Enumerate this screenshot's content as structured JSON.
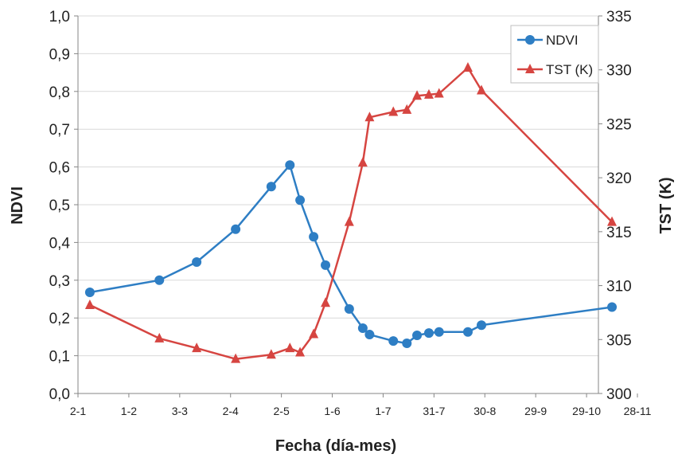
{
  "chart_data": {
    "type": "line",
    "xlabel": "Fecha (día-mes)",
    "ylabel": "NDVI",
    "y2label": "TST (K)",
    "x_domain": [
      0,
      307
    ],
    "x_ticks": [
      {
        "label": "2-1",
        "day": 0
      },
      {
        "label": "1-2",
        "day": 30
      },
      {
        "label": "3-3",
        "day": 60
      },
      {
        "label": "2-4",
        "day": 90
      },
      {
        "label": "2-5",
        "day": 120
      },
      {
        "label": "1-6",
        "day": 150
      },
      {
        "label": "1-7",
        "day": 180
      },
      {
        "label": "31-7",
        "day": 210
      },
      {
        "label": "30-8",
        "day": 240
      },
      {
        "label": "29-9",
        "day": 270
      },
      {
        "label": "29-10",
        "day": 300
      },
      {
        "label": "28-11",
        "day": 330
      }
    ],
    "y_left": {
      "min": 0,
      "max": 1,
      "step": 0.1
    },
    "y_left_ticks": [
      "0,0",
      "0,1",
      "0,2",
      "0,3",
      "0,4",
      "0,5",
      "0,6",
      "0,7",
      "0,8",
      "0,9",
      "1,0"
    ],
    "y_right": {
      "min": 300,
      "max": 335,
      "step": 5
    },
    "y_right_ticks": [
      "300",
      "305",
      "310",
      "315",
      "320",
      "325",
      "330",
      "335"
    ],
    "legend": {
      "position": "top-right",
      "entries": [
        "NDVI",
        "TST (K)"
      ]
    },
    "series": [
      {
        "name": "NDVI",
        "axis": "left",
        "color": "#2E7EC4",
        "marker": "circle",
        "points": [
          [
            7,
            0.268
          ],
          [
            48,
            0.3
          ],
          [
            70,
            0.348
          ],
          [
            93,
            0.435
          ],
          [
            114,
            0.548
          ],
          [
            125,
            0.605
          ],
          [
            131,
            0.512
          ],
          [
            139,
            0.415
          ],
          [
            146,
            0.34
          ],
          [
            160,
            0.224
          ],
          [
            168,
            0.173
          ],
          [
            172,
            0.156
          ],
          [
            186,
            0.139
          ],
          [
            194,
            0.133
          ],
          [
            200,
            0.154
          ],
          [
            207,
            0.16
          ],
          [
            213,
            0.163
          ],
          [
            230,
            0.163
          ],
          [
            238,
            0.181
          ],
          [
            315,
            0.229
          ]
        ]
      },
      {
        "name": "TST (K)",
        "axis": "right",
        "color": "#D64541",
        "marker": "triangle",
        "points": [
          [
            7,
            308.2
          ],
          [
            48,
            305.1
          ],
          [
            70,
            304.2
          ],
          [
            93,
            303.2
          ],
          [
            114,
            303.6
          ],
          [
            125,
            304.2
          ],
          [
            131,
            303.8
          ],
          [
            139,
            305.5
          ],
          [
            146,
            308.4
          ],
          [
            160,
            315.9
          ],
          [
            168,
            321.4
          ],
          [
            172,
            325.6
          ],
          [
            186,
            326.1
          ],
          [
            194,
            326.3
          ],
          [
            200,
            327.6
          ],
          [
            207,
            327.7
          ],
          [
            213,
            327.8
          ],
          [
            230,
            330.2
          ],
          [
            238,
            328.1
          ],
          [
            315,
            315.9
          ]
        ]
      }
    ]
  }
}
